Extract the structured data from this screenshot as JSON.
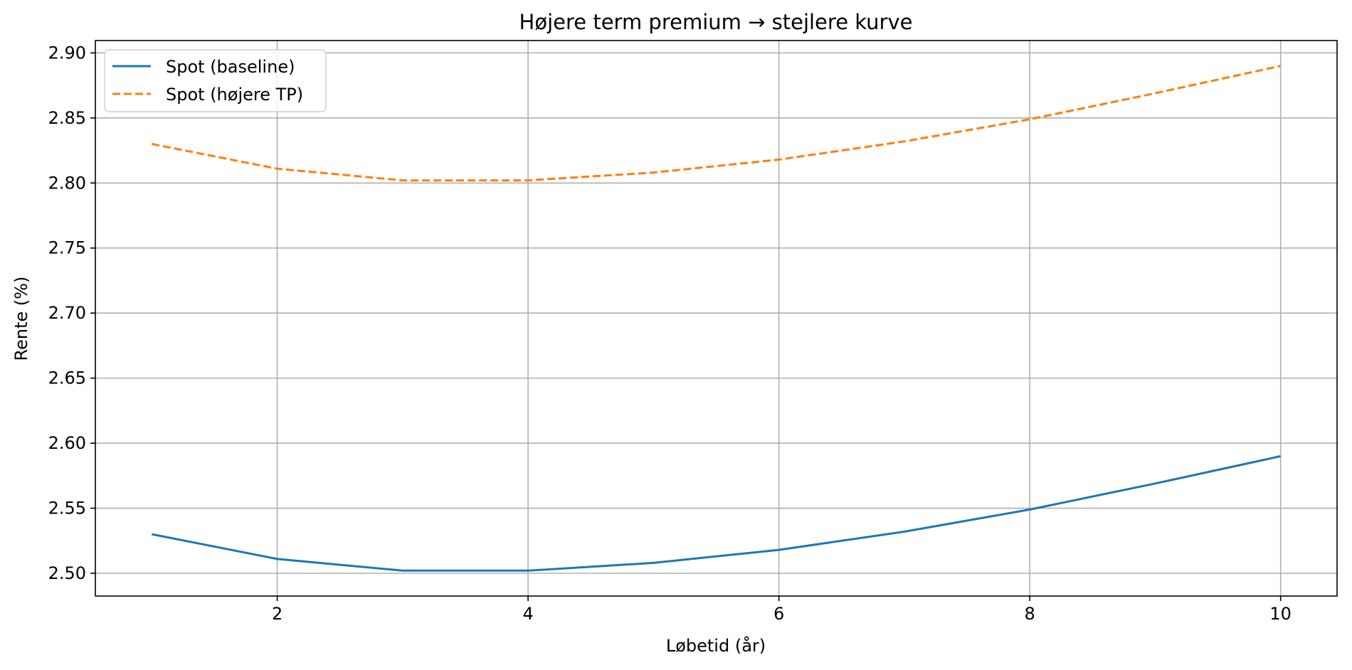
{
  "chart_data": {
    "type": "line",
    "title": "Højere term premium → stejlere kurve",
    "xlabel": "Løbetid (år)",
    "ylabel": "Rente (%)",
    "xlim": [
      0.55,
      10.45
    ],
    "ylim": [
      2.4825,
      2.9095
    ],
    "xticks": [
      2,
      4,
      6,
      8,
      10
    ],
    "yticks": [
      2.5,
      2.55,
      2.6,
      2.65,
      2.7,
      2.75,
      2.8,
      2.85,
      2.9
    ],
    "ytick_labels": [
      "2.50",
      "2.55",
      "2.60",
      "2.65",
      "2.70",
      "2.75",
      "2.80",
      "2.85",
      "2.90"
    ],
    "grid": true,
    "legend_position": "top-left",
    "x": [
      1,
      2,
      3,
      4,
      5,
      6,
      7,
      8,
      9,
      10
    ],
    "series": [
      {
        "name": "Spot (baseline)",
        "color": "#1f77b4",
        "style": "solid",
        "values": [
          2.53,
          2.511,
          2.502,
          2.502,
          2.508,
          2.518,
          2.532,
          2.549,
          2.569,
          2.59
        ]
      },
      {
        "name": "Spot (højere TP)",
        "color": "#ff7f0e",
        "style": "dashed",
        "values": [
          2.83,
          2.811,
          2.802,
          2.802,
          2.808,
          2.818,
          2.832,
          2.849,
          2.869,
          2.89
        ]
      }
    ]
  }
}
